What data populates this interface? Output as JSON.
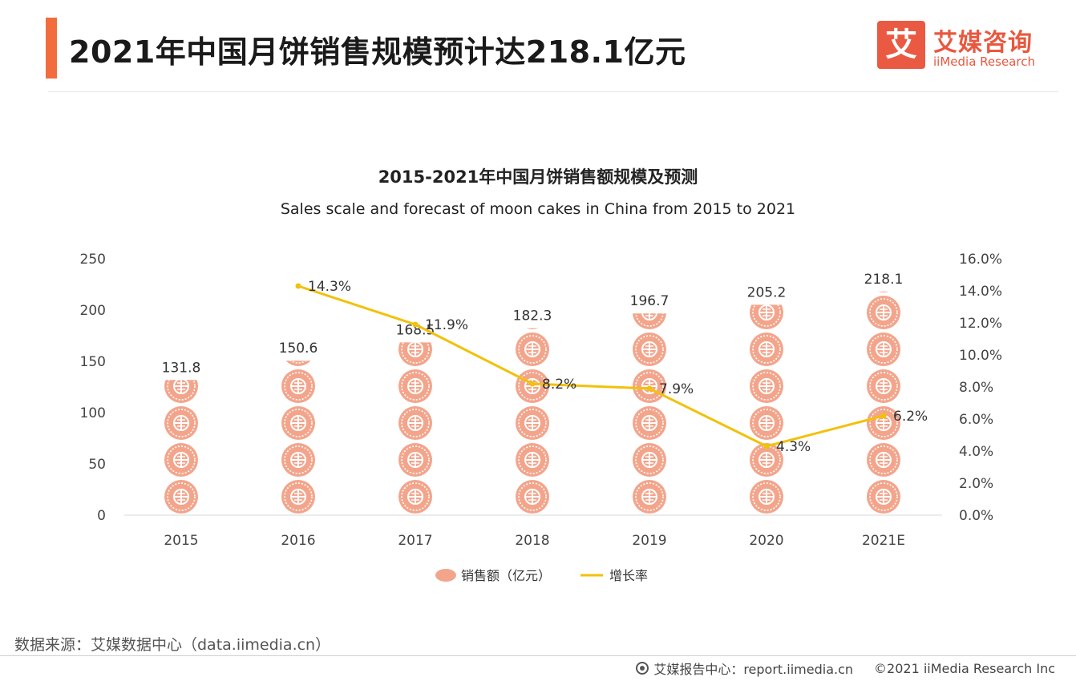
{
  "header": {
    "title": "2021年中国月饼销售规模预计达218.1亿元",
    "brand_mark": "艾",
    "brand_cn": "艾媒咨询",
    "brand_en": "iiMedia Research"
  },
  "chart_data": {
    "type": "bar",
    "title": "2015-2021年中国月饼销售额规模及预测",
    "subtitle": "Sales scale and forecast of moon cakes in China from 2015 to 2021",
    "categories": [
      "2015",
      "2016",
      "2017",
      "2018",
      "2019",
      "2020",
      "2021E"
    ],
    "series": [
      {
        "name": "销售额（亿元）",
        "type": "bar",
        "values": [
          131.8,
          150.6,
          168.5,
          182.3,
          196.7,
          205.2,
          218.1
        ],
        "labels": [
          "131.8",
          "150.6",
          "168.5",
          "182.3",
          "196.7",
          "205.2",
          "218.1"
        ],
        "color": "#f3a58c",
        "axis": "left"
      },
      {
        "name": "增长率",
        "type": "line",
        "values": [
          null,
          14.3,
          11.9,
          8.2,
          7.9,
          4.3,
          6.2
        ],
        "labels": [
          "",
          "14.3%",
          "11.9%",
          "8.2%",
          "7.9%",
          "4.3%",
          "6.2%"
        ],
        "color": "#f2c10a",
        "axis": "right"
      }
    ],
    "left_axis": {
      "ylim": [
        0,
        250
      ],
      "ticks": [
        "0",
        "50",
        "100",
        "150",
        "200",
        "250"
      ]
    },
    "right_axis": {
      "ylim": [
        0,
        16
      ],
      "ticks": [
        "0.0%",
        "2.0%",
        "4.0%",
        "6.0%",
        "8.0%",
        "10.0%",
        "12.0%",
        "14.0%",
        "16.0%"
      ]
    },
    "legend_position": "bottom",
    "grid": false
  },
  "footer": {
    "source": "数据来源：艾媒数据中心（data.iimedia.cn）",
    "report": "艾媒报告中心：report.iimedia.cn",
    "copyright": "©2021 iiMedia Research Inc"
  },
  "colors": {
    "accent": "#f26d3d",
    "brand": "#ea5a43",
    "bar": "#f3a58c",
    "line": "#f2c10a"
  }
}
